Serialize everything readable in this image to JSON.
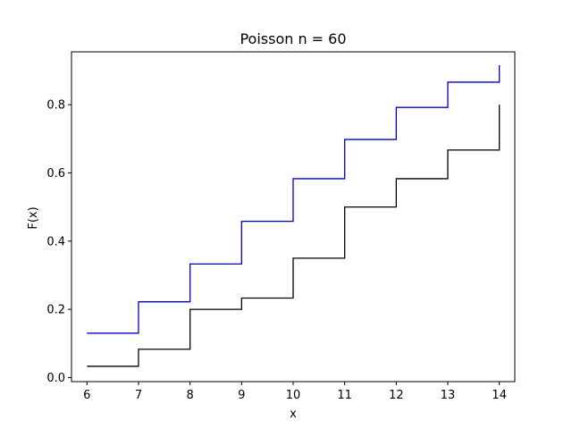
{
  "chart_data": {
    "type": "line",
    "step": true,
    "title": "Poisson n = 60",
    "xlabel": "x",
    "ylabel": "F(x)",
    "xlim": [
      5.7,
      14.3
    ],
    "ylim": [
      -0.012,
      0.955
    ],
    "xticks": [
      6,
      7,
      8,
      9,
      10,
      11,
      12,
      13,
      14
    ],
    "xtick_labels": [
      "6",
      "7",
      "8",
      "9",
      "10",
      "11",
      "12",
      "13",
      "14"
    ],
    "yticks": [
      0.0,
      0.2,
      0.4,
      0.6,
      0.8
    ],
    "ytick_labels": [
      "0.0",
      "0.2",
      "0.4",
      "0.6",
      "0.8"
    ],
    "grid": false,
    "series": [
      {
        "color": "#0000cc",
        "x": [
          6,
          7,
          8,
          9,
          10,
          11,
          12,
          13,
          14
        ],
        "y": [
          0.13,
          0.222,
          0.333,
          0.458,
          0.583,
          0.698,
          0.792,
          0.866,
          0.916
        ]
      },
      {
        "color": "#000000",
        "x": [
          6,
          7,
          8,
          9,
          10,
          11,
          12,
          13,
          14
        ],
        "y": [
          0.033,
          0.083,
          0.2,
          0.233,
          0.35,
          0.5,
          0.583,
          0.667,
          0.8
        ]
      }
    ]
  }
}
